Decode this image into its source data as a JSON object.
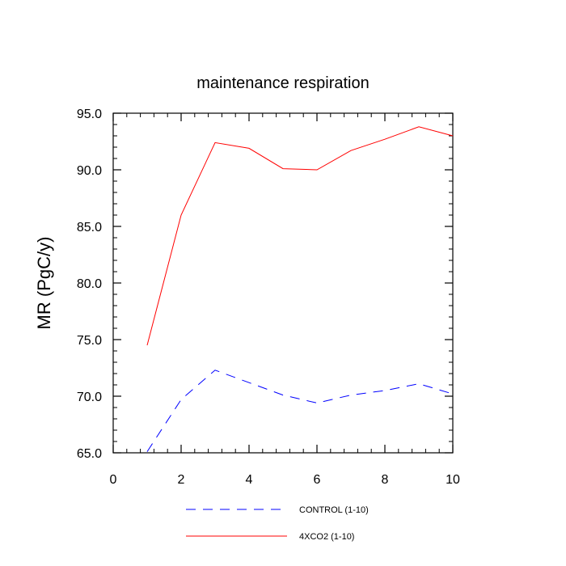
{
  "chart_data": {
    "type": "line",
    "title": "maintenance respiration",
    "xlabel": "",
    "ylabel": "MR  (PgC/y)",
    "xlim": [
      0,
      10
    ],
    "ylim": [
      65,
      95
    ],
    "x_ticks": [
      0,
      2,
      4,
      6,
      8,
      10
    ],
    "x_tick_labels": [
      "0",
      "2",
      "4",
      "6",
      "8",
      "10"
    ],
    "y_ticks": [
      65,
      70,
      75,
      80,
      85,
      90,
      95
    ],
    "y_tick_labels": [
      "65.0",
      "70.0",
      "75.0",
      "80.0",
      "85.0",
      "90.0",
      "95.0"
    ],
    "grid": false,
    "legend_position": "bottom",
    "x": [
      1,
      2,
      3,
      4,
      5,
      6,
      7,
      8,
      9,
      10
    ],
    "series": [
      {
        "name": "4XCO2 (1-10)",
        "color": "#ff0000",
        "line_style": "solid",
        "values": [
          74.5,
          86.0,
          92.4,
          91.9,
          90.1,
          90.0,
          91.7,
          92.7,
          93.8,
          93.0
        ]
      },
      {
        "name": "CONTROL (1-10)",
        "color": "#0000ff",
        "line_style": "dashed",
        "values": [
          65.1,
          69.7,
          72.3,
          71.2,
          70.1,
          69.4,
          70.1,
          70.5,
          71.1,
          70.2
        ]
      }
    ],
    "legend": [
      "CONTROL (1-10)",
      "4XCO2 (1-10)"
    ]
  }
}
